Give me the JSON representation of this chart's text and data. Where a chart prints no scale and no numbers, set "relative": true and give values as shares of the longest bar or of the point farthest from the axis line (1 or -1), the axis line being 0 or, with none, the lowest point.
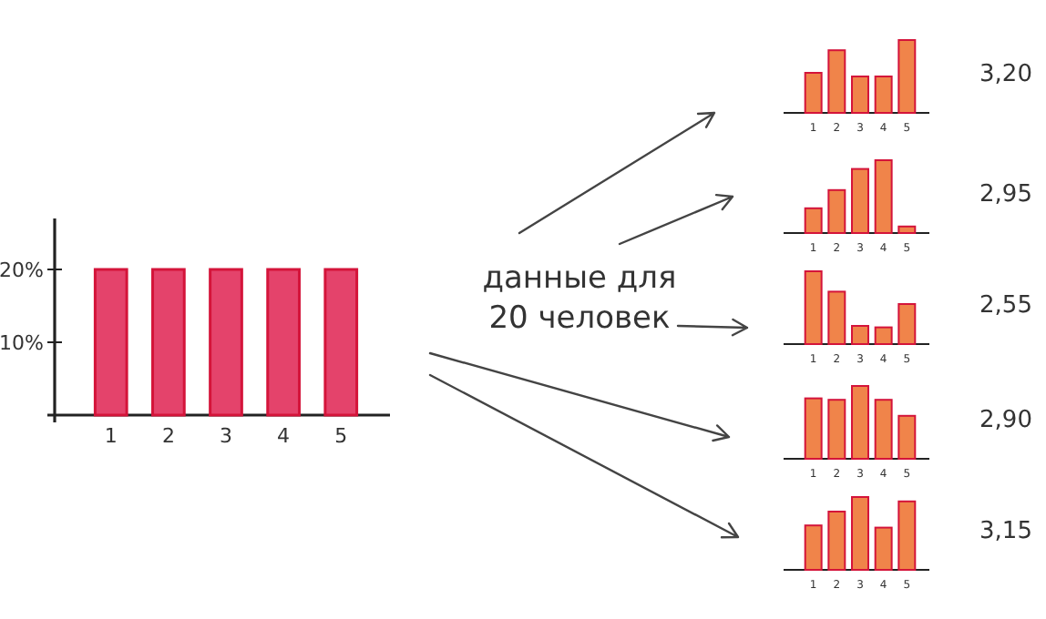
{
  "chart_data": [
    {
      "type": "bar",
      "categories": [
        "1",
        "2",
        "3",
        "4",
        "5"
      ],
      "values": [
        20,
        20,
        20,
        20,
        20
      ],
      "color": "#e4436b",
      "ylim": [
        0,
        27
      ],
      "yticks": [
        {
          "value": 10,
          "label": "10%"
        },
        {
          "value": 20,
          "label": "20%"
        }
      ],
      "annotations": [
        "данные для 20 человек"
      ]
    },
    {
      "type": "bar",
      "categories": [
        "1",
        "2",
        "3",
        "4",
        "5"
      ],
      "values": [
        0.55,
        0.86,
        0.5,
        0.5,
        1
      ],
      "relative": true,
      "color": "#f0844a",
      "annotations": [
        "3,20"
      ]
    },
    {
      "type": "bar",
      "categories": [
        "1",
        "2",
        "3",
        "4",
        "5"
      ],
      "values": [
        0.34,
        0.59,
        0.88,
        1,
        0.09
      ],
      "relative": true,
      "color": "#f0844a",
      "annotations": [
        "2,95"
      ]
    },
    {
      "type": "bar",
      "categories": [
        "1",
        "2",
        "3",
        "4",
        "5"
      ],
      "values": [
        1,
        0.72,
        0.25,
        0.23,
        0.55
      ],
      "relative": true,
      "color": "#f0844a",
      "annotations": [
        "2,55"
      ]
    },
    {
      "type": "bar",
      "categories": [
        "1",
        "2",
        "3",
        "4",
        "5"
      ],
      "values": [
        0.83,
        0.81,
        1,
        0.81,
        0.59
      ],
      "relative": true,
      "color": "#f0844a",
      "annotations": [
        "2,90"
      ]
    },
    {
      "type": "bar",
      "categories": [
        "1",
        "2",
        "3",
        "4",
        "5"
      ],
      "values": [
        0.61,
        0.8,
        1,
        0.58,
        0.94
      ],
      "relative": true,
      "color": "#f0844a",
      "annotations": [
        "3,15"
      ]
    }
  ]
}
